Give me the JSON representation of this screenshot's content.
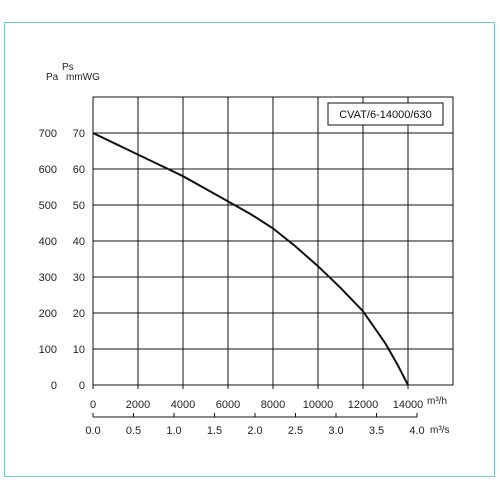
{
  "chart_data": {
    "type": "line",
    "title": "CVAT/6-14000/630",
    "y_left_label_top": "Ps",
    "y_left_label_pa": "Pa",
    "y_right_label": "mmWG",
    "x_primary_unit": "m³/h",
    "x_secondary_unit": "m³/s",
    "xlim": [
      0,
      16000
    ],
    "ylim": [
      0,
      800
    ],
    "x_ticks": [
      0,
      2000,
      4000,
      6000,
      8000,
      10000,
      12000,
      14000
    ],
    "x_tick_labels": [
      "0",
      "2000",
      "4000",
      "6000",
      "8000",
      "10000",
      "12000",
      "14000"
    ],
    "x2_tick_labels": [
      "0.0",
      "0.5",
      "1.0",
      "1.5",
      "2.0",
      "2.5",
      "3.0",
      "3.5",
      "4.0"
    ],
    "y_ticks": [
      0,
      100,
      200,
      300,
      400,
      500,
      600,
      700
    ],
    "y_tick_labels_pa": [
      "0",
      "100",
      "200",
      "300",
      "400",
      "500",
      "600",
      "700"
    ],
    "y_tick_labels_mmwg": [
      "0",
      "10",
      "20",
      "30",
      "40",
      "50",
      "60",
      "70"
    ],
    "grid": true,
    "series": [
      {
        "x": [
          0,
          1000,
          2000,
          3000,
          4000,
          5000,
          6000,
          7000,
          8000,
          9000,
          10000,
          11000,
          12000,
          12500,
          13000,
          13500,
          14000
        ],
        "y": [
          700,
          670,
          640,
          610,
          580,
          545,
          510,
          475,
          435,
          385,
          330,
          270,
          205,
          160,
          115,
          60,
          0
        ]
      }
    ]
  }
}
